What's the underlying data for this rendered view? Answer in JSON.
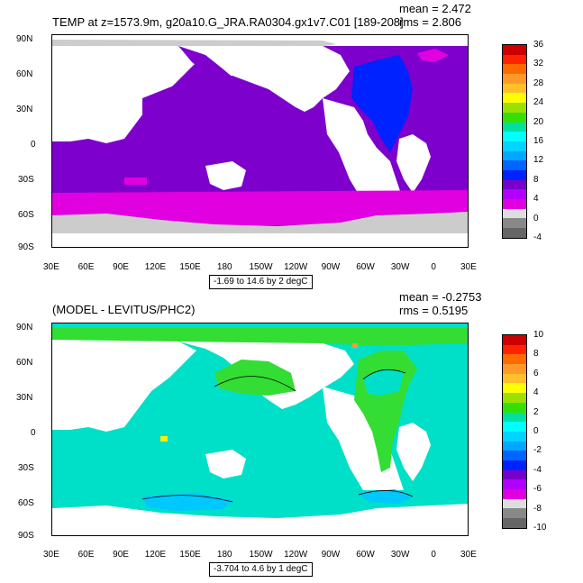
{
  "panel1": {
    "title": "TEMP at z=1573.9m, g20a10.G_JRA.RA0304.gx1v7.C01 [189-208]",
    "mean": "mean = 2.472",
    "rms": "rms = 2.806",
    "footnote": "-1.69 to 14.6 by 2 degC",
    "colorbar": {
      "labels": [
        "36",
        "32",
        "28",
        "24",
        "20",
        "16",
        "12",
        "8",
        "4",
        "0",
        "-4"
      ],
      "colors": [
        "#cc0000",
        "#ff2200",
        "#ff6a00",
        "#ff9a2a",
        "#ffc02a",
        "#ffff00",
        "#9be000",
        "#34e000",
        "#00e0a0",
        "#00ffff",
        "#00d4ff",
        "#00a8ff",
        "#0066ff",
        "#0022ff",
        "#7700cc",
        "#b200ff",
        "#e000e0",
        "#dddddd",
        "#888888",
        "#666666"
      ]
    }
  },
  "panel2": {
    "title": "(MODEL - LEVITUS/PHC2)",
    "mean": "mean = -0.2753",
    "rms": "rms = 0.5195",
    "footnote": "-3.704 to 4.6 by 1 degC",
    "colorbar": {
      "labels": [
        "10",
        "8",
        "6",
        "4",
        "2",
        "0",
        "-2",
        "-4",
        "-6",
        "-8",
        "-10"
      ],
      "colors": [
        "#cc0000",
        "#ff2200",
        "#ff6a00",
        "#ff9a2a",
        "#ffc02a",
        "#ffff00",
        "#9be000",
        "#34e000",
        "#00e0a0",
        "#00ffff",
        "#00d4ff",
        "#00a8ff",
        "#0066ff",
        "#0022ff",
        "#7700cc",
        "#b200ff",
        "#e000e0",
        "#dddddd",
        "#888888",
        "#666666"
      ]
    }
  },
  "axes": {
    "lat_labels": [
      "90N",
      "60N",
      "30N",
      "0",
      "30S",
      "60S",
      "90S"
    ],
    "lon_labels": [
      "30E",
      "60E",
      "90E",
      "120E",
      "150E",
      "180",
      "150W",
      "120W",
      "90W",
      "60W",
      "30W",
      "0",
      "30E"
    ]
  }
}
